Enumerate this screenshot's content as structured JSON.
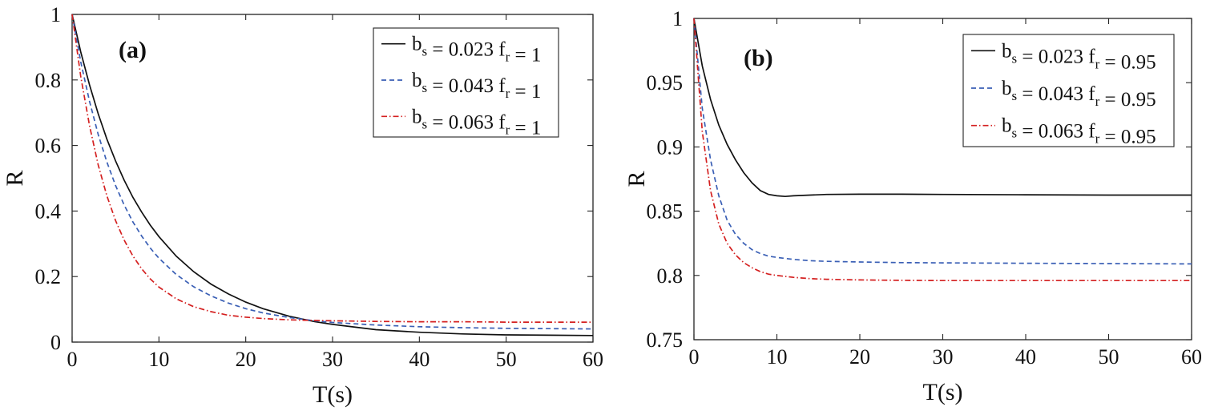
{
  "chart_data": [
    {
      "type": "line",
      "panel_label": "(a)",
      "xlabel": "T(s)",
      "ylabel": "R",
      "xlim": [
        0,
        60
      ],
      "ylim": [
        0,
        1
      ],
      "xticks": [
        0,
        10,
        20,
        30,
        40,
        50,
        60
      ],
      "yticks": [
        0,
        0.2,
        0.4,
        0.6,
        0.8,
        1
      ],
      "xtick_labels": [
        "0",
        "10",
        "20",
        "30",
        "40",
        "50",
        "60"
      ],
      "ytick_labels": [
        "0",
        "0.2",
        "0.4",
        "0.6",
        "0.8",
        "1"
      ],
      "legend_position": "top-right",
      "series": [
        {
          "name": "b_s = 0.023 f_r = 1",
          "legend": {
            "b": "b",
            "b_sub": "s",
            "mid": " = 0.023 f",
            "f_sub": "r",
            "end": " = 1"
          },
          "color": "#111111",
          "dash": "solid",
          "x": [
            0,
            1,
            2,
            3,
            4,
            5,
            6,
            7,
            8,
            9,
            10,
            12,
            14,
            16,
            18,
            20,
            22,
            25,
            28,
            30,
            35,
            40,
            45,
            50,
            55,
            60
          ],
          "y": [
            1.0,
            0.885,
            0.785,
            0.697,
            0.62,
            0.553,
            0.494,
            0.442,
            0.397,
            0.357,
            0.322,
            0.262,
            0.215,
            0.177,
            0.147,
            0.122,
            0.102,
            0.079,
            0.062,
            0.054,
            0.038,
            0.03,
            0.025,
            0.022,
            0.021,
            0.02
          ]
        },
        {
          "name": "b_s = 0.043 f_r = 1",
          "legend": {
            "b": "b",
            "b_sub": "s",
            "mid": " = 0.043 f",
            "f_sub": "r",
            "end": " = 1"
          },
          "color": "#3a5fb5",
          "dash": "dashed",
          "x": [
            0,
            1,
            2,
            3,
            4,
            5,
            6,
            7,
            8,
            9,
            10,
            12,
            14,
            16,
            18,
            20,
            22,
            25,
            28,
            30,
            35,
            40,
            45,
            50,
            55,
            60
          ],
          "y": [
            1.0,
            0.855,
            0.735,
            0.634,
            0.55,
            0.478,
            0.418,
            0.367,
            0.324,
            0.287,
            0.256,
            0.206,
            0.169,
            0.141,
            0.119,
            0.102,
            0.089,
            0.075,
            0.065,
            0.06,
            0.052,
            0.047,
            0.044,
            0.042,
            0.041,
            0.04
          ]
        },
        {
          "name": "b_s = 0.063 f_r = 1",
          "legend": {
            "b": "b",
            "b_sub": "s",
            "mid": " = 0.063 f",
            "f_sub": "r",
            "end": " = 1"
          },
          "color": "#d42020",
          "dash": "dashdot",
          "x": [
            0,
            1,
            2,
            3,
            4,
            5,
            6,
            7,
            8,
            9,
            10,
            12,
            14,
            16,
            18,
            20,
            22,
            25,
            28,
            30,
            35,
            40,
            45,
            50,
            55,
            60
          ],
          "y": [
            1.0,
            0.81,
            0.661,
            0.541,
            0.447,
            0.371,
            0.311,
            0.263,
            0.224,
            0.193,
            0.168,
            0.132,
            0.108,
            0.093,
            0.082,
            0.076,
            0.072,
            0.068,
            0.066,
            0.065,
            0.063,
            0.062,
            0.062,
            0.061,
            0.061,
            0.061
          ]
        }
      ]
    },
    {
      "type": "line",
      "panel_label": "(b)",
      "xlabel": "T(s)",
      "ylabel": "R",
      "xlim": [
        0,
        60
      ],
      "ylim": [
        0.75,
        1
      ],
      "xticks": [
        0,
        10,
        20,
        30,
        40,
        50,
        60
      ],
      "yticks": [
        0.75,
        0.8,
        0.85,
        0.9,
        0.95,
        1
      ],
      "xtick_labels": [
        "0",
        "10",
        "20",
        "30",
        "40",
        "50",
        "60"
      ],
      "ytick_labels": [
        "0.75",
        "0.8",
        "0.85",
        "0.9",
        "0.95",
        "1"
      ],
      "legend_position": "top-right",
      "series": [
        {
          "name": "b_s = 0.023 f_r = 0.95",
          "legend": {
            "b": "b",
            "b_sub": "s",
            "mid": " = 0.023 f",
            "f_sub": "r",
            "end": " = 0.95"
          },
          "color": "#111111",
          "dash": "solid",
          "x": [
            0,
            1,
            2,
            3,
            4,
            5,
            6,
            7,
            8,
            9,
            10,
            11,
            12,
            14,
            16,
            20,
            25,
            30,
            40,
            50,
            60
          ],
          "y": [
            1.0,
            0.963,
            0.937,
            0.917,
            0.902,
            0.89,
            0.88,
            0.872,
            0.866,
            0.863,
            0.862,
            0.8615,
            0.862,
            0.8625,
            0.863,
            0.8632,
            0.8632,
            0.863,
            0.8628,
            0.8625,
            0.8625
          ]
        },
        {
          "name": "b_s = 0.043 f_r = 0.95",
          "legend": {
            "b": "b",
            "b_sub": "s",
            "mid": " = 0.043 f",
            "f_sub": "r",
            "end": " = 0.95"
          },
          "color": "#3a5fb5",
          "dash": "dashed",
          "x": [
            0,
            1,
            2,
            3,
            4,
            5,
            6,
            7,
            8,
            9,
            10,
            12,
            14,
            16,
            20,
            25,
            30,
            40,
            50,
            60
          ],
          "y": [
            1.0,
            0.93,
            0.89,
            0.862,
            0.843,
            0.832,
            0.825,
            0.82,
            0.817,
            0.815,
            0.814,
            0.8125,
            0.8115,
            0.811,
            0.8105,
            0.81,
            0.8098,
            0.8095,
            0.8092,
            0.809
          ]
        },
        {
          "name": "b_s = 0.063 f_r = 0.95",
          "legend": {
            "b": "b",
            "b_sub": "s",
            "mid": " = 0.063 f",
            "f_sub": "r",
            "end": " = 0.95"
          },
          "color": "#d42020",
          "dash": "dashdot",
          "x": [
            0,
            1,
            2,
            3,
            4,
            5,
            6,
            7,
            8,
            9,
            10,
            12,
            14,
            16,
            20,
            25,
            30,
            40,
            50,
            60
          ],
          "y": [
            1.0,
            0.912,
            0.866,
            0.84,
            0.825,
            0.816,
            0.81,
            0.806,
            0.803,
            0.801,
            0.8,
            0.7985,
            0.7975,
            0.797,
            0.7965,
            0.7962,
            0.796,
            0.796,
            0.796,
            0.796
          ]
        }
      ]
    }
  ]
}
